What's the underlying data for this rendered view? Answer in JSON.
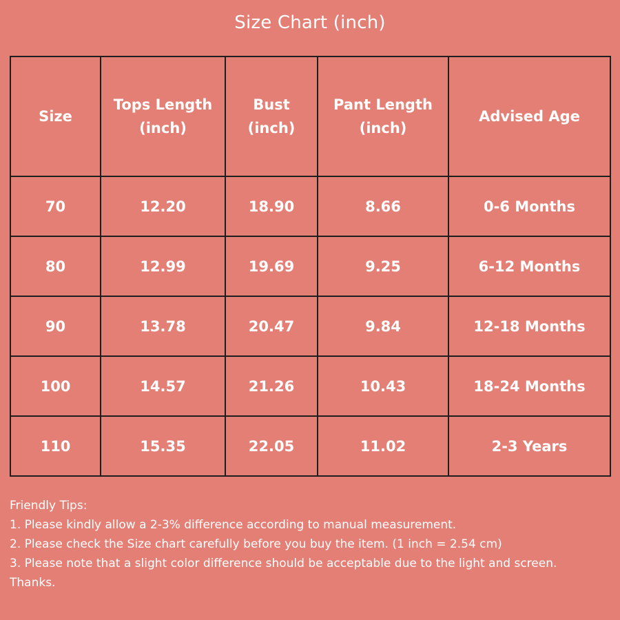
{
  "title": "Size Chart (inch)",
  "table": {
    "headers": [
      [
        "Size"
      ],
      [
        "Tops Length",
        "(inch)"
      ],
      [
        "Bust",
        "(inch)"
      ],
      [
        "Pant Length",
        "(inch)"
      ],
      [
        "Advised Age"
      ]
    ],
    "rows": [
      [
        "70",
        "12.20",
        "18.90",
        "8.66",
        "0-6 Months"
      ],
      [
        "80",
        "12.99",
        "19.69",
        "9.25",
        "6-12 Months"
      ],
      [
        "90",
        "13.78",
        "20.47",
        "9.84",
        "12-18 Months"
      ],
      [
        "100",
        "14.57",
        "21.26",
        "10.43",
        "18-24 Months"
      ],
      [
        "110",
        "15.35",
        "22.05",
        "11.02",
        "2-3 Years"
      ]
    ]
  },
  "tips": {
    "heading": "Friendly Tips:",
    "items": [
      "1. Please kindly allow a 2-3% difference according to manual measurement.",
      "2. Please check the Size chart carefully before you buy the item. (1 inch = 2.54 cm)",
      "3. Please note that a slight color difference should be acceptable due to the light and screen. Thanks."
    ]
  },
  "colors": {
    "background": "#e47f76",
    "text": "#ffffff",
    "border": "#1e1e1e"
  }
}
